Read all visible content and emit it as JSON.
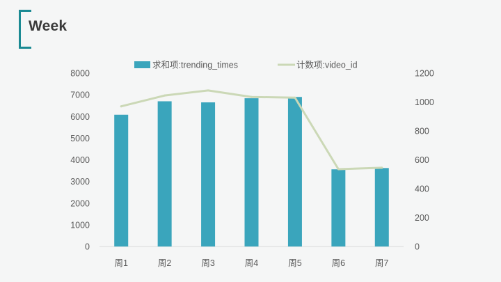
{
  "page": {
    "title": "Week"
  },
  "colors": {
    "accent": "#1b8a93",
    "bar": "#3aa5bc",
    "line": "#cbd8b6",
    "axis": "#d9d9d9"
  },
  "chart_data": {
    "type": "bar",
    "categories": [
      "周1",
      "周2",
      "周3",
      "周4",
      "周5",
      "周6",
      "周7"
    ],
    "series": [
      {
        "name": "求和项:trending_times",
        "type": "bar",
        "axis": "left",
        "values": [
          6080,
          6700,
          6650,
          6840,
          6900,
          3560,
          3620
        ]
      },
      {
        "name": "计数项:video_id",
        "type": "line",
        "axis": "right",
        "values": [
          970,
          1045,
          1080,
          1035,
          1030,
          535,
          545
        ]
      }
    ],
    "y_left": {
      "min": 0,
      "max": 8000,
      "step": 1000,
      "ticks": [
        "0",
        "1000",
        "2000",
        "3000",
        "4000",
        "5000",
        "6000",
        "7000",
        "8000"
      ]
    },
    "y_right": {
      "min": 0,
      "max": 1200,
      "step": 200,
      "ticks": [
        "0",
        "200",
        "400",
        "600",
        "800",
        "1000",
        "1200"
      ]
    },
    "legend_position": "top",
    "grid": false
  }
}
